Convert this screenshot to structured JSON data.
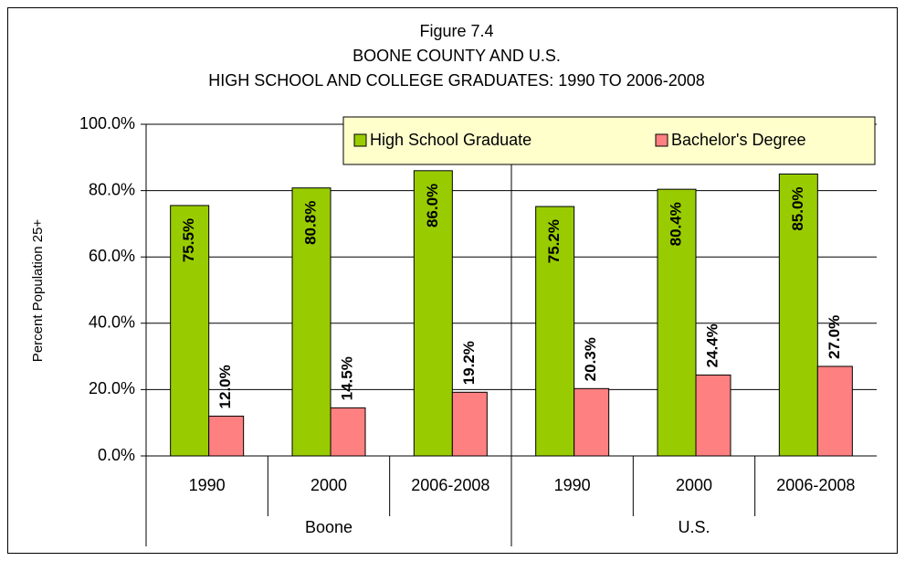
{
  "chart_data": {
    "type": "bar",
    "title": [
      "Figure 7.4",
      "BOONE COUNTY AND U.S.",
      "HIGH SCHOOL AND COLLEGE GRADUATES:  1990 TO 2006-2008"
    ],
    "y_axis_label": "Percent Population 25+",
    "groups": [
      {
        "label": "Boone",
        "categories": [
          "1990",
          "2000",
          "2006-2008"
        ]
      },
      {
        "label": "U.S.",
        "categories": [
          "1990",
          "2000",
          "2006-2008"
        ]
      }
    ],
    "series": [
      {
        "name": "High School Graduate",
        "color": "#99cc00",
        "values": [
          75.5,
          80.8,
          86.0,
          75.2,
          80.4,
          85.0
        ],
        "value_labels": [
          "75.5%",
          "80.8%",
          "86.0%",
          "75.2%",
          "80.4%",
          "85.0%"
        ]
      },
      {
        "name": "Bachelor's Degree",
        "color": "#ff8080",
        "values": [
          12.0,
          14.5,
          19.2,
          20.3,
          24.4,
          27.0
        ],
        "value_labels": [
          "12.0%",
          "14.5%",
          "19.2%",
          "20.3%",
          "24.4%",
          "27.0%"
        ]
      }
    ],
    "ylim": [
      0,
      100
    ],
    "yticks": [
      {
        "value": 0,
        "label": "0.0%"
      },
      {
        "value": 20,
        "label": "20.0%"
      },
      {
        "value": 40,
        "label": "40.0%"
      },
      {
        "value": 60,
        "label": "60.0%"
      },
      {
        "value": 80,
        "label": "80.0%"
      },
      {
        "value": 100,
        "label": "100.0%"
      }
    ],
    "grid": true,
    "legend": "top-right"
  }
}
